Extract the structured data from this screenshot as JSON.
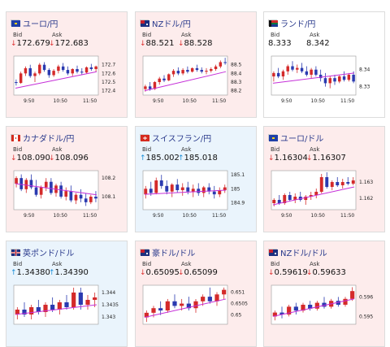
{
  "colors": {
    "down_arrow": "#d33333",
    "up_arrow": "#1a8fd8",
    "title": "#2a3a8c",
    "candle_up": "#d42a2a",
    "candle_down": "#2a3ab0",
    "ma": "#c52fd8"
  },
  "cards": [
    {
      "name": "eur-jpy",
      "pair": "ユーロ/円",
      "flag": "eu-flag",
      "tone": "down",
      "bid_label": "Bid",
      "ask_label": "Ask",
      "bid": "172.679",
      "ask": "172.683",
      "bid_dir": "down",
      "ask_dir": "down",
      "yticks": [
        "172.7",
        "172.6",
        "172.5",
        "172.4"
      ],
      "xticks": [
        "9:50",
        "10:50",
        "11:50"
      ],
      "chart": {
        "ymin": 172.35,
        "ymax": 172.8,
        "ma_start": 172.43,
        "ma_end": 172.62,
        "ohlc": [
          [
            172.5,
            172.53,
            172.46,
            172.49
          ],
          [
            172.49,
            172.62,
            172.48,
            172.6
          ],
          [
            172.6,
            172.68,
            172.57,
            172.66
          ],
          [
            172.66,
            172.7,
            172.55,
            172.57
          ],
          [
            172.57,
            172.62,
            172.5,
            172.6
          ],
          [
            172.6,
            172.72,
            172.58,
            172.7
          ],
          [
            172.7,
            172.73,
            172.62,
            172.64
          ],
          [
            172.64,
            172.66,
            172.55,
            172.58
          ],
          [
            172.58,
            172.65,
            172.56,
            172.63
          ],
          [
            172.63,
            172.7,
            172.6,
            172.68
          ],
          [
            172.68,
            172.72,
            172.62,
            172.64
          ],
          [
            172.64,
            172.68,
            172.58,
            172.6
          ],
          [
            172.6,
            172.66,
            172.57,
            172.65
          ],
          [
            172.65,
            172.69,
            172.6,
            172.62
          ],
          [
            172.62,
            172.66,
            172.58,
            172.61
          ],
          [
            172.61,
            172.68,
            172.6,
            172.67
          ],
          [
            172.67,
            172.71,
            172.63,
            172.65
          ],
          [
            172.65,
            172.69,
            172.62,
            172.68
          ]
        ]
      }
    },
    {
      "name": "nzd-jpy",
      "pair": "NZドル/円",
      "flag": "nz-flag",
      "tone": "down",
      "bid_label": "Bid",
      "ask_label": "Ask",
      "bid": "88.521",
      "ask": "88.528",
      "bid_dir": "down",
      "ask_dir": "down",
      "yticks": [
        "88.5",
        "88.4",
        "88.3",
        "88.2"
      ],
      "xticks": [
        "9:50",
        "10:50",
        "11:50"
      ],
      "chart": {
        "ymin": 88.15,
        "ymax": 88.6,
        "ma_start": 88.2,
        "ma_end": 88.42,
        "ohlc": [
          [
            88.22,
            88.27,
            88.19,
            88.25
          ],
          [
            88.25,
            88.3,
            88.2,
            88.22
          ],
          [
            88.22,
            88.31,
            88.21,
            88.3
          ],
          [
            88.3,
            88.36,
            88.27,
            88.34
          ],
          [
            88.34,
            88.38,
            88.3,
            88.32
          ],
          [
            88.32,
            88.4,
            88.31,
            88.39
          ],
          [
            88.39,
            88.45,
            88.36,
            88.43
          ],
          [
            88.43,
            88.47,
            88.38,
            88.4
          ],
          [
            88.4,
            88.46,
            88.38,
            88.44
          ],
          [
            88.44,
            88.48,
            88.4,
            88.42
          ],
          [
            88.42,
            88.47,
            88.41,
            88.46
          ],
          [
            88.46,
            88.5,
            88.42,
            88.44
          ],
          [
            88.44,
            88.47,
            88.4,
            88.42
          ],
          [
            88.42,
            88.46,
            88.39,
            88.43
          ],
          [
            88.43,
            88.47,
            88.41,
            88.45
          ],
          [
            88.45,
            88.5,
            88.43,
            88.48
          ],
          [
            88.48,
            88.55,
            88.46,
            88.53
          ],
          [
            88.53,
            88.58,
            88.5,
            88.52
          ]
        ]
      }
    },
    {
      "name": "zar-jpy",
      "pair": "ランド/円",
      "flag": "za-flag",
      "tone": "flat",
      "bid_label": "Bid",
      "ask_label": "Ask",
      "bid": "8.333",
      "ask": "8.342",
      "bid_dir": "none",
      "ask_dir": "none",
      "yticks": [
        "8.34",
        "8.33"
      ],
      "xticks": [
        "9:50",
        "10:50",
        "11:50"
      ],
      "chart": {
        "ymin": 8.325,
        "ymax": 8.348,
        "ma_start": 8.332,
        "ma_end": 8.338,
        "ohlc": [
          [
            8.336,
            8.339,
            8.333,
            8.338
          ],
          [
            8.338,
            8.341,
            8.335,
            8.336
          ],
          [
            8.336,
            8.34,
            8.334,
            8.339
          ],
          [
            8.339,
            8.343,
            8.337,
            8.342
          ],
          [
            8.342,
            8.345,
            8.339,
            8.34
          ],
          [
            8.34,
            8.343,
            8.338,
            8.341
          ],
          [
            8.341,
            8.344,
            8.338,
            8.339
          ],
          [
            8.339,
            8.342,
            8.336,
            8.337
          ],
          [
            8.337,
            8.341,
            8.335,
            8.34
          ],
          [
            8.34,
            8.342,
            8.336,
            8.337
          ],
          [
            8.337,
            8.34,
            8.333,
            8.335
          ],
          [
            8.335,
            8.338,
            8.33,
            8.332
          ],
          [
            8.332,
            8.336,
            8.329,
            8.335
          ],
          [
            8.335,
            8.337,
            8.331,
            8.333
          ],
          [
            8.333,
            8.337,
            8.332,
            8.336
          ],
          [
            8.336,
            8.339,
            8.333,
            8.334
          ],
          [
            8.334,
            8.338,
            8.333,
            8.337
          ],
          [
            8.337,
            8.339,
            8.332,
            8.333
          ]
        ]
      }
    },
    {
      "name": "cad-jpy",
      "pair": "カナダドル/円",
      "flag": "ca-flag",
      "tone": "down",
      "bid_label": "Bid",
      "ask_label": "Ask",
      "bid": "108.090",
      "ask": "108.096",
      "bid_dir": "down",
      "ask_dir": "down",
      "yticks": [
        "108.2",
        "108.1"
      ],
      "xticks": [
        "9:50",
        "10:50",
        "11:50"
      ],
      "chart": {
        "ymin": 108.03,
        "ymax": 108.24,
        "ma_start": 108.17,
        "ma_end": 108.11,
        "ohlc": [
          [
            108.17,
            108.21,
            108.15,
            108.2
          ],
          [
            108.2,
            108.22,
            108.13,
            108.14
          ],
          [
            108.14,
            108.2,
            108.12,
            108.19
          ],
          [
            108.19,
            108.22,
            108.14,
            108.15
          ],
          [
            108.15,
            108.19,
            108.1,
            108.11
          ],
          [
            108.11,
            108.16,
            108.09,
            108.15
          ],
          [
            108.15,
            108.2,
            108.13,
            108.18
          ],
          [
            108.18,
            108.2,
            108.11,
            108.12
          ],
          [
            108.12,
            108.17,
            108.1,
            108.16
          ],
          [
            108.16,
            108.18,
            108.09,
            108.1
          ],
          [
            108.1,
            108.15,
            108.08,
            108.13
          ],
          [
            108.13,
            108.16,
            108.07,
            108.08
          ],
          [
            108.08,
            108.12,
            108.06,
            108.11
          ],
          [
            108.11,
            108.14,
            108.07,
            108.09
          ],
          [
            108.09,
            108.12,
            108.05,
            108.07
          ],
          [
            108.07,
            108.11,
            108.06,
            108.1
          ],
          [
            108.1,
            108.13,
            108.07,
            108.09
          ]
        ]
      }
    },
    {
      "name": "chf-jpy",
      "pair": "スイスフラン/円",
      "flag": "ch-flag",
      "tone": "up",
      "bid_label": "Bid",
      "ask_label": "Ask",
      "bid": "185.002",
      "ask": "185.018",
      "bid_dir": "up",
      "ask_dir": "up",
      "yticks": [
        "185.1",
        "185",
        "184.9"
      ],
      "xticks": [
        "9:50",
        "10:50",
        "11:50"
      ],
      "chart": {
        "ymin": 184.85,
        "ymax": 185.13,
        "ma_start": 184.96,
        "ma_end": 184.99,
        "ohlc": [
          [
            184.96,
            185.02,
            184.93,
            185.0
          ],
          [
            185.0,
            185.05,
            184.95,
            184.97
          ],
          [
            184.97,
            185.08,
            184.96,
            185.06
          ],
          [
            185.06,
            185.1,
            185.0,
            185.02
          ],
          [
            185.02,
            185.06,
            184.96,
            184.98
          ],
          [
            184.98,
            185.04,
            184.94,
            185.03
          ],
          [
            185.03,
            185.07,
            184.97,
            184.99
          ],
          [
            184.99,
            185.04,
            184.95,
            185.01
          ],
          [
            185.01,
            185.05,
            184.96,
            184.98
          ],
          [
            184.98,
            185.03,
            184.94,
            185.0
          ],
          [
            185.0,
            185.04,
            184.95,
            184.97
          ],
          [
            184.97,
            185.02,
            184.94,
            185.01
          ],
          [
            185.01,
            185.04,
            184.96,
            184.98
          ],
          [
            184.98,
            185.02,
            184.93,
            184.96
          ],
          [
            184.96,
            185.01,
            184.94,
            184.99
          ],
          [
            184.99,
            185.03,
            184.97,
            185.01
          ]
        ]
      }
    },
    {
      "name": "eur-usd",
      "pair": "ユーロ/ドル",
      "flag": "eu-flag",
      "tone": "down",
      "bid_label": "Bid",
      "ask_label": "Ask",
      "bid": "1.16304",
      "ask": "1.16307",
      "bid_dir": "down",
      "ask_dir": "down",
      "yticks": [
        "1.163",
        "1.162"
      ],
      "xticks": [
        "9:50",
        "10:50",
        "11:50"
      ],
      "chart": {
        "ymin": 1.1613,
        "ymax": 1.1637,
        "ma_start": 1.1616,
        "ma_end": 1.1627,
        "ohlc": [
          [
            1.1617,
            1.162,
            1.1615,
            1.1619
          ],
          [
            1.1619,
            1.1622,
            1.1616,
            1.1617
          ],
          [
            1.1617,
            1.1623,
            1.1616,
            1.1622
          ],
          [
            1.1622,
            1.1624,
            1.1618,
            1.1619
          ],
          [
            1.1619,
            1.1623,
            1.1617,
            1.1621
          ],
          [
            1.1621,
            1.1624,
            1.1618,
            1.1619
          ],
          [
            1.1619,
            1.1622,
            1.1616,
            1.1621
          ],
          [
            1.1621,
            1.1624,
            1.1619,
            1.1622
          ],
          [
            1.1622,
            1.1626,
            1.162,
            1.1624
          ],
          [
            1.1624,
            1.1635,
            1.1623,
            1.1633
          ],
          [
            1.1633,
            1.1636,
            1.1626,
            1.1627
          ],
          [
            1.1627,
            1.1631,
            1.1625,
            1.163
          ],
          [
            1.163,
            1.1633,
            1.1627,
            1.1628
          ],
          [
            1.1628,
            1.1632,
            1.1626,
            1.163
          ],
          [
            1.163,
            1.1633,
            1.1628,
            1.1629
          ],
          [
            1.1629,
            1.1633,
            1.1628,
            1.1631
          ]
        ]
      }
    },
    {
      "name": "gbp-usd",
      "pair": "英ポンド/ドル",
      "flag": "gb-flag",
      "tone": "up",
      "bid_label": "Bid",
      "ask_label": "Ask",
      "bid": "1.34380",
      "ask": "1.34390",
      "bid_dir": "up",
      "ask_dir": "up",
      "yticks": [
        "1.344",
        "1.3435",
        "1.343"
      ],
      "xticks": [],
      "chart": {
        "ymin": 1.3427,
        "ymax": 1.3443,
        "ma_start": 1.3431,
        "ma_end": 1.3435,
        "ohlc": [
          [
            1.3431,
            1.3434,
            1.3429,
            1.3433
          ],
          [
            1.3433,
            1.3436,
            1.343,
            1.3431
          ],
          [
            1.3431,
            1.3435,
            1.3429,
            1.3434
          ],
          [
            1.3434,
            1.3437,
            1.3431,
            1.3432
          ],
          [
            1.3432,
            1.3436,
            1.343,
            1.3435
          ],
          [
            1.3435,
            1.3438,
            1.3432,
            1.3433
          ],
          [
            1.3433,
            1.3437,
            1.3431,
            1.3436
          ],
          [
            1.3436,
            1.3439,
            1.3433,
            1.3434
          ],
          [
            1.3434,
            1.3442,
            1.3433,
            1.344
          ],
          [
            1.344,
            1.3442,
            1.3433,
            1.3435
          ],
          [
            1.3435,
            1.3439,
            1.3433,
            1.3437
          ],
          [
            1.3437,
            1.344,
            1.3434,
            1.3438
          ]
        ]
      }
    },
    {
      "name": "aud-usd",
      "pair": "豪ドル/ドル",
      "flag": "au-flag",
      "tone": "down",
      "bid_label": "Bid",
      "ask_label": "Ask",
      "bid": "0.65095",
      "ask": "0.65099",
      "bid_dir": "down",
      "ask_dir": "down",
      "yticks": [
        "0.651",
        "0.6505",
        "0.65"
      ],
      "xticks": [],
      "chart": {
        "ymin": 0.6496,
        "ymax": 0.6513,
        "ma_start": 0.6499,
        "ma_end": 0.6507,
        "ohlc": [
          [
            0.6499,
            0.6502,
            0.6497,
            0.6501
          ],
          [
            0.6501,
            0.6504,
            0.6499,
            0.6503
          ],
          [
            0.6503,
            0.6506,
            0.65,
            0.6502
          ],
          [
            0.6502,
            0.6507,
            0.6501,
            0.6506
          ],
          [
            0.6506,
            0.6509,
            0.6503,
            0.6504
          ],
          [
            0.6504,
            0.6507,
            0.6502,
            0.6505
          ],
          [
            0.6505,
            0.6508,
            0.6502,
            0.6503
          ],
          [
            0.6503,
            0.6507,
            0.6501,
            0.6506
          ],
          [
            0.6506,
            0.6509,
            0.6504,
            0.6508
          ],
          [
            0.6508,
            0.6512,
            0.6505,
            0.6506
          ],
          [
            0.6506,
            0.651,
            0.6504,
            0.6509
          ],
          [
            0.6509,
            0.6512,
            0.6507,
            0.6511
          ]
        ]
      }
    },
    {
      "name": "nzd-usd",
      "pair": "NZドル/ドル",
      "flag": "nz-flag",
      "tone": "down",
      "bid_label": "Bid",
      "ask_label": "Ask",
      "bid": "0.59619",
      "ask": "0.59633",
      "bid_dir": "down",
      "ask_dir": "down",
      "yticks": [
        "0.596",
        "0.595"
      ],
      "xticks": [],
      "chart": {
        "ymin": 0.5946,
        "ymax": 0.5966,
        "ma_start": 0.595,
        "ma_end": 0.5959,
        "ohlc": [
          [
            0.595,
            0.5953,
            0.5948,
            0.5952
          ],
          [
            0.5952,
            0.5955,
            0.5949,
            0.5951
          ],
          [
            0.5951,
            0.5956,
            0.595,
            0.5955
          ],
          [
            0.5955,
            0.5957,
            0.5951,
            0.5953
          ],
          [
            0.5953,
            0.5957,
            0.5952,
            0.5956
          ],
          [
            0.5956,
            0.5958,
            0.5953,
            0.5954
          ],
          [
            0.5954,
            0.5958,
            0.5953,
            0.5957
          ],
          [
            0.5957,
            0.596,
            0.5954,
            0.5955
          ],
          [
            0.5955,
            0.5959,
            0.5954,
            0.5958
          ],
          [
            0.5958,
            0.596,
            0.5955,
            0.5956
          ],
          [
            0.5956,
            0.596,
            0.5955,
            0.5959
          ],
          [
            0.5959,
            0.5965,
            0.5958,
            0.5963
          ]
        ]
      }
    }
  ]
}
